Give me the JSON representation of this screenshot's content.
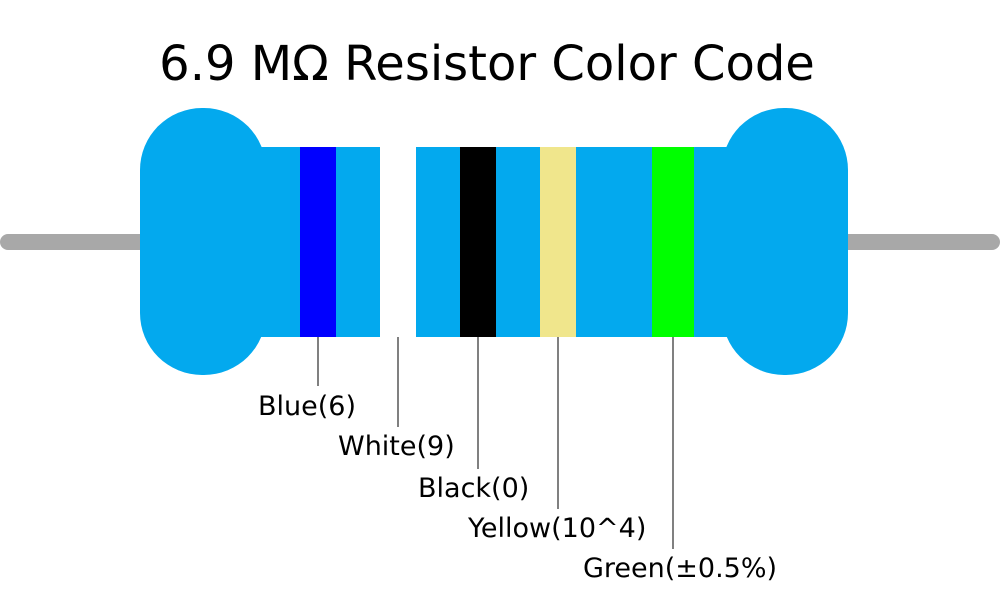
{
  "title": "6.9 MΩ Resistor Color Code",
  "bands": [
    {
      "label": "Blue(6)"
    },
    {
      "label": "White(9)"
    },
    {
      "label": "Black(0)"
    },
    {
      "label": "Yellow(10^4)"
    },
    {
      "label": "Green(±0.5%)"
    }
  ]
}
